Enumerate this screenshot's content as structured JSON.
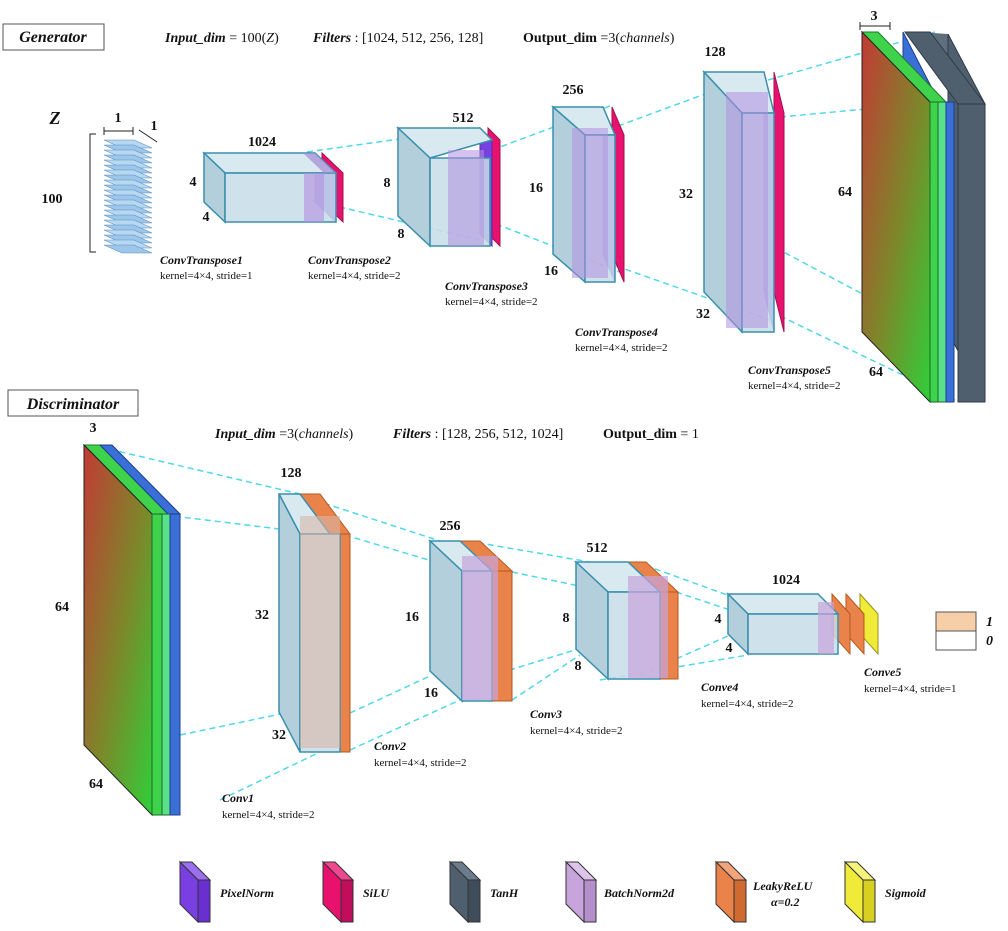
{
  "generator": {
    "title": "Generator",
    "hdr_input_label": "Input_dim",
    "hdr_input_val": " = 100(",
    "hdr_input_sym": "Z",
    "hdr_input_end": ")",
    "hdr_filters_label": "Filters",
    "hdr_filters_val": " : [1024, 512, 256, 128]",
    "hdr_output_label": "Output_dim",
    "hdr_output_val": " =3(",
    "hdr_output_sym": "channels",
    "hdr_output_end": ")",
    "z_label": "Z",
    "z_dim": "100",
    "z_w": "1",
    "z_h": "1",
    "dims": {
      "l1_c": "1024",
      "l1_h": "4",
      "l1_w": "4",
      "l2_c": "512",
      "l2_h": "8",
      "l2_w": "8",
      "l3_c": "256",
      "l3_h": "16",
      "l3_w": "16",
      "l4_c": "128",
      "l4_h": "32",
      "l4_w": "32",
      "l5_c": "3",
      "l5_h": "64",
      "l5_w": "64"
    },
    "layers": [
      {
        "name": "ConvTranspose1",
        "params": "kernel=4×4, stride=1"
      },
      {
        "name": "ConvTranspose2",
        "params": "kernel=4×4, stride=2"
      },
      {
        "name": "ConvTranspose3",
        "params": "kernel=4×4, stride=2"
      },
      {
        "name": "ConvTranspose4",
        "params": "kernel=4×4, stride=2"
      },
      {
        "name": "ConvTranspose5",
        "params": "kernel=4×4, stride=2"
      }
    ]
  },
  "discriminator": {
    "title": "Discriminator",
    "hdr_input_label": "Input_dim",
    "hdr_input_val": " =3(",
    "hdr_input_sym": "channels",
    "hdr_input_end": ")",
    "hdr_filters_label": "Filters",
    "hdr_filters_val": " : [128, 256, 512, 1024]",
    "hdr_output_label": "Output_dim",
    "hdr_output_val": " = 1",
    "dims": {
      "in_c": "3",
      "in_h": "64",
      "in_w": "64",
      "l1_c": "128",
      "l1_h": "32",
      "l1_w": "32",
      "l2_c": "256",
      "l2_h": "16",
      "l2_w": "16",
      "l3_c": "512",
      "l3_h": "8",
      "l3_w": "8",
      "l4_c": "1024",
      "l4_h": "4",
      "l4_w": "4"
    },
    "layers": [
      {
        "name": "Conv1",
        "params": "kernel=4×4, stride=2"
      },
      {
        "name": "Conv2",
        "params": "kernel=4×4, stride=2"
      },
      {
        "name": "Conv3",
        "params": "kernel=4×4, stride=2"
      },
      {
        "name": "Conve4",
        "params": "kernel=4×4, stride=2"
      },
      {
        "name": "Conve5",
        "params": "kernel=4×4, stride=1"
      }
    ],
    "output_labels": [
      "1",
      "0"
    ]
  },
  "legend": [
    {
      "label": "PixelNorm",
      "color": "#7a3fe0"
    },
    {
      "label": "SiLU",
      "color": "#e8126e"
    },
    {
      "label": "TanH",
      "color": "#4f5f6e"
    },
    {
      "label": "BatchNorm2d",
      "color": "#c7a4dc"
    },
    {
      "label": "LeakyReLU",
      "label2": "α=0.2",
      "color": "#e9834a"
    },
    {
      "label": "Sigmoid",
      "color": "#f0ea38"
    }
  ],
  "colors": {
    "conv_face": "#c7dde8",
    "conv_edge": "#3a8fad",
    "pixelnorm": "#7a3fe0",
    "silu": "#e8126e",
    "tanh": "#4f5f6e",
    "batchnorm": "#c7a4dc",
    "leakyrelu": "#e9834a",
    "sigmoid": "#f0ea38",
    "image_red": "#d0483a",
    "image_green": "#3ed34a",
    "image_blue": "#3a6fd8",
    "link": "#4fd8e8"
  }
}
